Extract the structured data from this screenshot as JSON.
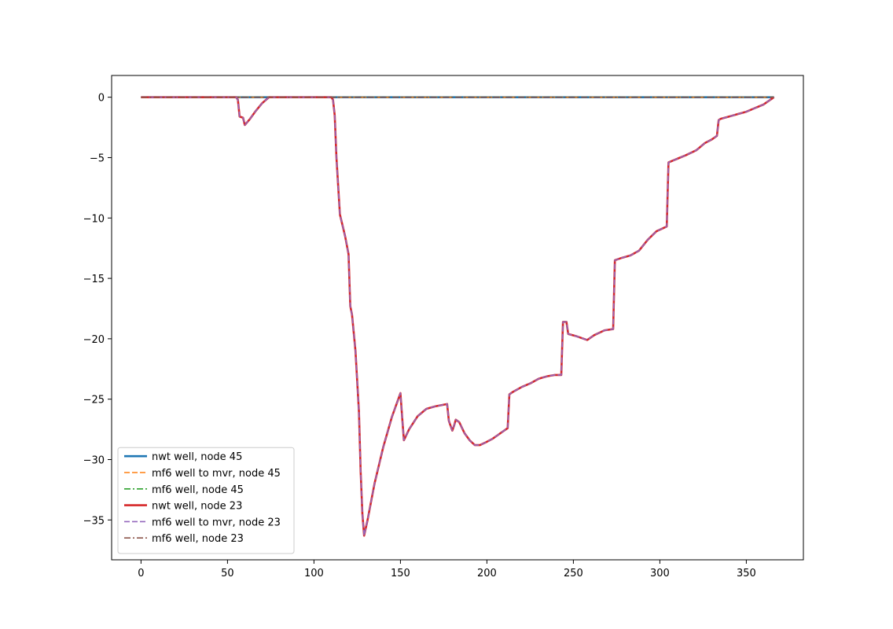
{
  "chart_data": {
    "type": "line",
    "title": "",
    "xlabel": "",
    "ylabel": "",
    "xlim": [
      -17,
      383
    ],
    "ylim": [
      -38.3,
      1.8
    ],
    "xticks": [
      0,
      50,
      100,
      150,
      200,
      250,
      300,
      350
    ],
    "yticks": [
      0,
      -5,
      -10,
      -15,
      -20,
      -25,
      -30,
      -35
    ],
    "ytick_labels": [
      "0",
      "−5",
      "−10",
      "−15",
      "−20",
      "−25",
      "−30",
      "−35"
    ],
    "grid": false,
    "legend_position": "lower-left",
    "series": [
      {
        "name": "nwt well, node 45",
        "color": "#1f77b4",
        "style": "solid",
        "x": [
          0,
          366
        ],
        "y": [
          0,
          0
        ]
      },
      {
        "name": "mf6 well to mvr, node 45",
        "color": "#ff7f0e",
        "style": "dashed",
        "x": [
          0,
          366
        ],
        "y": [
          0,
          0
        ]
      },
      {
        "name": "mf6 well, node 45",
        "color": "#2ca02c",
        "style": "dashdot",
        "x": [
          0,
          366
        ],
        "y": [
          0,
          0
        ]
      },
      {
        "name": "nwt well, node 23",
        "color": "#d62728",
        "style": "solid",
        "x": [
          0,
          55,
          56,
          57,
          59,
          60,
          63,
          66,
          70,
          74,
          100,
          110,
          111,
          112,
          113,
          115,
          118,
          120,
          121,
          122,
          124,
          126,
          127,
          128,
          129,
          131,
          135,
          140,
          145,
          150,
          151,
          152,
          155,
          160,
          165,
          170,
          177,
          178,
          180,
          181,
          182,
          184,
          187,
          190,
          193,
          196,
          199,
          203,
          208,
          212,
          213,
          215,
          220,
          225,
          230,
          235,
          239,
          243,
          244,
          245,
          246,
          247,
          252,
          258,
          262,
          268,
          273,
          274,
          278,
          283,
          288,
          293,
          298,
          304,
          305,
          310,
          315,
          321,
          326,
          330,
          333,
          334,
          335,
          340,
          345,
          350,
          355,
          360,
          366
        ],
        "y": [
          0,
          0,
          -0.2,
          -1.6,
          -1.7,
          -2.3,
          -1.8,
          -1.2,
          -0.5,
          0,
          0,
          0,
          -0.2,
          -1.5,
          -5.0,
          -9.7,
          -11.5,
          -13.0,
          -17.3,
          -18.0,
          -21.0,
          -26.0,
          -31.0,
          -34.5,
          -36.3,
          -35.0,
          -32.0,
          -29.0,
          -26.5,
          -24.5,
          -26.5,
          -28.4,
          -27.5,
          -26.4,
          -25.8,
          -25.6,
          -25.4,
          -26.8,
          -27.6,
          -27.2,
          -26.7,
          -26.9,
          -27.8,
          -28.4,
          -28.8,
          -28.8,
          -28.6,
          -28.3,
          -27.8,
          -27.4,
          -24.6,
          -24.4,
          -24.0,
          -23.7,
          -23.3,
          -23.1,
          -23.0,
          -23.0,
          -18.6,
          -18.6,
          -18.6,
          -19.6,
          -19.8,
          -20.1,
          -19.7,
          -19.3,
          -19.2,
          -13.5,
          -13.3,
          -13.1,
          -12.7,
          -11.8,
          -11.1,
          -10.7,
          -5.4,
          -5.1,
          -4.8,
          -4.4,
          -3.8,
          -3.5,
          -3.2,
          -1.9,
          -1.8,
          -1.6,
          -1.4,
          -1.2,
          -0.9,
          -0.6,
          0
        ]
      },
      {
        "name": "mf6 well to mvr, node 23",
        "color": "#9467bd",
        "style": "dashed",
        "x": [
          0,
          55,
          56,
          57,
          59,
          60,
          63,
          66,
          70,
          74,
          100,
          110,
          111,
          112,
          113,
          115,
          118,
          120,
          121,
          122,
          124,
          126,
          127,
          128,
          129,
          131,
          135,
          140,
          145,
          150,
          151,
          152,
          155,
          160,
          165,
          170,
          177,
          178,
          180,
          181,
          182,
          184,
          187,
          190,
          193,
          196,
          199,
          203,
          208,
          212,
          213,
          215,
          220,
          225,
          230,
          235,
          239,
          243,
          244,
          245,
          246,
          247,
          252,
          258,
          262,
          268,
          273,
          274,
          278,
          283,
          288,
          293,
          298,
          304,
          305,
          310,
          315,
          321,
          326,
          330,
          333,
          334,
          335,
          340,
          345,
          350,
          355,
          360,
          366
        ],
        "y": [
          0,
          0,
          -0.2,
          -1.6,
          -1.7,
          -2.3,
          -1.8,
          -1.2,
          -0.5,
          0,
          0,
          0,
          -0.2,
          -1.5,
          -5.0,
          -9.7,
          -11.5,
          -13.0,
          -17.3,
          -18.0,
          -21.0,
          -26.0,
          -31.0,
          -34.5,
          -36.3,
          -35.0,
          -32.0,
          -29.0,
          -26.5,
          -24.5,
          -26.5,
          -28.4,
          -27.5,
          -26.4,
          -25.8,
          -25.6,
          -25.4,
          -26.8,
          -27.6,
          -27.2,
          -26.7,
          -26.9,
          -27.8,
          -28.4,
          -28.8,
          -28.8,
          -28.6,
          -28.3,
          -27.8,
          -27.4,
          -24.6,
          -24.4,
          -24.0,
          -23.7,
          -23.3,
          -23.1,
          -23.0,
          -23.0,
          -18.6,
          -18.6,
          -18.6,
          -19.6,
          -19.8,
          -20.1,
          -19.7,
          -19.3,
          -19.2,
          -13.5,
          -13.3,
          -13.1,
          -12.7,
          -11.8,
          -11.1,
          -10.7,
          -5.4,
          -5.1,
          -4.8,
          -4.4,
          -3.8,
          -3.5,
          -3.2,
          -1.9,
          -1.8,
          -1.6,
          -1.4,
          -1.2,
          -0.9,
          -0.6,
          0
        ]
      },
      {
        "name": "mf6 well, node 23",
        "color": "#8c564b",
        "style": "dashdot",
        "x": [
          0,
          366
        ],
        "y": [
          0,
          0
        ]
      }
    ]
  }
}
